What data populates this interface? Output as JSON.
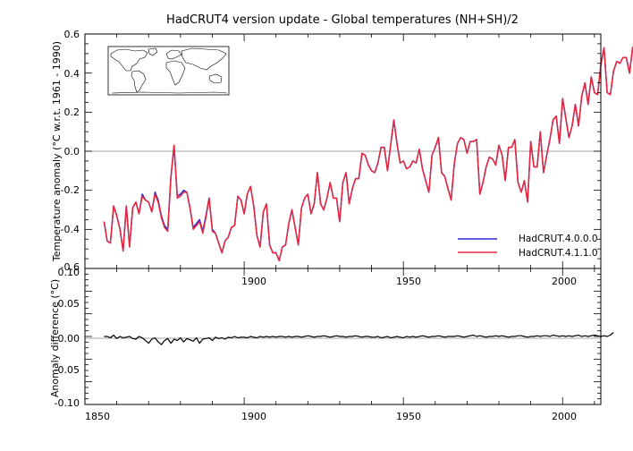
{
  "chart_data": [
    {
      "type": "line",
      "title": "HadCRUT4 version update - Global temperatures (NH+SH)/2",
      "ylabel": "Temperature anomaly (°C w.r.t. 1961 - 1990)",
      "xlim": [
        1850,
        2012
      ],
      "ylim": [
        -0.6,
        0.6
      ],
      "x_ticks": [
        "1900",
        "1950",
        "2000"
      ],
      "y_ticks": [
        "-0.6",
        "-0.4",
        "-0.2",
        "0.0",
        "0.2",
        "0.4",
        "0.6"
      ],
      "zero_line": true,
      "legend_position": "bottom-right",
      "inset_map": "world-map",
      "x_start": 1856,
      "series": [
        {
          "name": "HadCRUT.4.0.0.0",
          "color": "#2b2bd6",
          "values": [
            -0.36,
            -0.46,
            -0.47,
            -0.28,
            -0.33,
            -0.4,
            -0.51,
            -0.28,
            -0.49,
            -0.29,
            -0.26,
            -0.32,
            -0.22,
            -0.25,
            -0.26,
            -0.31,
            -0.21,
            -0.25,
            -0.33,
            -0.38,
            -0.4,
            -0.13,
            0.03,
            -0.23,
            -0.22,
            -0.2,
            -0.21,
            -0.29,
            -0.39,
            -0.37,
            -0.35,
            -0.41,
            -0.33,
            -0.24,
            -0.4,
            -0.42,
            -0.47,
            -0.52,
            -0.46,
            -0.44,
            -0.39,
            -0.38,
            -0.23,
            -0.25,
            -0.32,
            -0.22,
            -0.18,
            -0.28,
            -0.43,
            -0.49,
            -0.31,
            -0.27,
            -0.48,
            -0.52,
            -0.52,
            -0.56,
            -0.49,
            -0.48,
            -0.37,
            -0.3,
            -0.39,
            -0.48,
            -0.29,
            -0.24,
            -0.22,
            -0.32,
            -0.27,
            -0.11,
            -0.27,
            -0.3,
            -0.24,
            -0.16,
            -0.24,
            -0.24,
            -0.36,
            -0.16,
            -0.11,
            -0.27,
            -0.19,
            -0.14,
            -0.14,
            -0.01,
            -0.02,
            -0.07,
            -0.1,
            -0.11,
            -0.06,
            0.02,
            0.02,
            -0.1,
            0.03,
            0.16,
            0.04,
            -0.06,
            -0.05,
            -0.09,
            -0.08,
            -0.05,
            -0.06,
            0.01,
            -0.09,
            -0.15,
            -0.21,
            -0.02,
            0.02,
            0.07,
            -0.11,
            -0.13,
            -0.19,
            -0.25,
            -0.06,
            0.04,
            0.07,
            0.06,
            -0.01,
            0.05,
            0.05,
            0.06,
            -0.22,
            -0.16,
            -0.08,
            -0.03,
            -0.04,
            -0.07,
            0.03,
            -0.02,
            -0.15,
            0.02,
            0.02,
            0.06,
            -0.16,
            -0.21,
            -0.15,
            -0.26,
            0.05,
            -0.08,
            -0.08,
            0.1,
            -0.11,
            -0.02,
            0.06,
            0.16,
            0.18,
            0.04,
            0.27,
            0.17,
            0.07,
            0.13,
            0.24,
            0.13,
            0.28,
            0.35,
            0.24,
            0.38,
            0.3,
            0.29,
            0.44,
            0.53,
            0.3,
            0.29,
            0.41,
            0.46,
            0.45,
            0.48,
            0.48,
            0.4,
            0.53,
            0.55
          ]
        },
        {
          "name": "HadCRUT.4.1.1.0",
          "color": "#e8283a",
          "values": [
            -0.36,
            -0.46,
            -0.47,
            -0.28,
            -0.33,
            -0.4,
            -0.51,
            -0.28,
            -0.49,
            -0.29,
            -0.26,
            -0.32,
            -0.23,
            -0.25,
            -0.26,
            -0.31,
            -0.22,
            -0.26,
            -0.34,
            -0.39,
            -0.41,
            -0.13,
            0.03,
            -0.24,
            -0.23,
            -0.21,
            -0.21,
            -0.29,
            -0.4,
            -0.38,
            -0.36,
            -0.42,
            -0.34,
            -0.24,
            -0.41,
            -0.42,
            -0.47,
            -0.52,
            -0.46,
            -0.44,
            -0.39,
            -0.38,
            -0.23,
            -0.25,
            -0.32,
            -0.22,
            -0.18,
            -0.28,
            -0.43,
            -0.49,
            -0.31,
            -0.27,
            -0.48,
            -0.52,
            -0.52,
            -0.56,
            -0.49,
            -0.48,
            -0.37,
            -0.3,
            -0.39,
            -0.48,
            -0.29,
            -0.24,
            -0.22,
            -0.32,
            -0.27,
            -0.11,
            -0.27,
            -0.3,
            -0.24,
            -0.16,
            -0.24,
            -0.24,
            -0.36,
            -0.16,
            -0.11,
            -0.27,
            -0.19,
            -0.14,
            -0.14,
            -0.01,
            -0.02,
            -0.07,
            -0.1,
            -0.11,
            -0.06,
            0.02,
            0.02,
            -0.1,
            0.03,
            0.16,
            0.04,
            -0.06,
            -0.05,
            -0.09,
            -0.08,
            -0.05,
            -0.06,
            0.01,
            -0.09,
            -0.15,
            -0.21,
            -0.02,
            0.02,
            0.07,
            -0.11,
            -0.13,
            -0.19,
            -0.25,
            -0.06,
            0.04,
            0.07,
            0.06,
            -0.01,
            0.05,
            0.05,
            0.06,
            -0.22,
            -0.16,
            -0.08,
            -0.03,
            -0.04,
            -0.07,
            0.03,
            -0.02,
            -0.15,
            0.02,
            0.02,
            0.06,
            -0.16,
            -0.21,
            -0.15,
            -0.26,
            0.05,
            -0.08,
            -0.08,
            0.1,
            -0.11,
            -0.02,
            0.06,
            0.16,
            0.18,
            0.04,
            0.27,
            0.17,
            0.07,
            0.13,
            0.24,
            0.13,
            0.28,
            0.35,
            0.24,
            0.38,
            0.3,
            0.29,
            0.44,
            0.53,
            0.3,
            0.29,
            0.41,
            0.46,
            0.45,
            0.48,
            0.48,
            0.4,
            0.53,
            0.55
          ]
        }
      ]
    },
    {
      "type": "line",
      "title": "",
      "ylabel": "Anomaly difference (°C)",
      "xlim": [
        1850,
        2012
      ],
      "ylim": [
        -0.1,
        0.1
      ],
      "x_ticks": [
        "1850",
        "1900",
        "1950",
        "2000"
      ],
      "y_ticks": [
        "-0.10",
        "-0.05",
        "0.00",
        "0.05",
        "0.10"
      ],
      "zero_line": true,
      "x_start": 1856,
      "series": [
        {
          "color": "#000000",
          "values": [
            0,
            0,
            -0.002,
            0.002,
            -0.003,
            0,
            -0.002,
            -0.001,
            0,
            -0.003,
            -0.004,
            0,
            -0.002,
            -0.006,
            -0.01,
            -0.004,
            -0.002,
            -0.008,
            -0.012,
            -0.006,
            -0.003,
            -0.01,
            -0.004,
            -0.006,
            -0.002,
            -0.008,
            -0.003,
            -0.005,
            -0.007,
            -0.002,
            -0.01,
            -0.004,
            -0.003,
            -0.002,
            -0.006,
            -0.001,
            -0.003,
            -0.002,
            -0.004,
            -0.001,
            -0.002,
            0,
            -0.002,
            -0.001,
            -0.001,
            -0.002,
            0,
            -0.001,
            -0.002,
            0,
            -0.001,
            0,
            -0.001,
            0,
            -0.001,
            0,
            0,
            -0.001,
            0,
            -0.001,
            0,
            0,
            -0.001,
            0,
            0.001,
            0,
            -0.001,
            0,
            0,
            0.001,
            0,
            -0.001,
            0,
            0.001,
            0,
            0,
            -0.001,
            0,
            0,
            0.001,
            0,
            -0.001,
            0,
            0,
            -0.001,
            -0.001,
            0,
            -0.002,
            -0.001,
            0,
            -0.002,
            -0.001,
            0,
            -0.001,
            -0.002,
            0,
            -0.001,
            0,
            -0.001,
            0,
            0.001,
            0,
            -0.001,
            0,
            0,
            0.001,
            0,
            -0.001,
            0,
            0,
            0,
            0.001,
            0,
            -0.001,
            0,
            0.001,
            0.002,
            0,
            0.001,
            0,
            -0.001,
            0,
            0,
            0.001,
            0,
            0.001,
            0,
            -0.001,
            0,
            0,
            0.001,
            0.001,
            0,
            -0.001,
            0,
            0,
            0.001,
            0,
            0.001,
            0.001,
            0,
            0.002,
            0.001,
            0,
            0.001,
            0,
            0.001,
            0,
            0.001,
            0.002,
            0,
            0.001,
            0,
            0.001,
            0.002,
            0.001,
            0,
            0.001,
            0,
            0.002,
            0.006
          ]
        }
      ]
    }
  ]
}
